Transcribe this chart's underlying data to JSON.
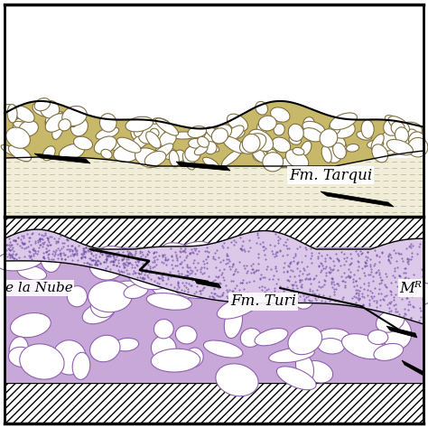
{
  "fig_width": 4.74,
  "fig_height": 4.74,
  "dpi": 100,
  "tarqui_color": "#c8b96a",
  "tarqui_ash_color": "#f0edd8",
  "turi_conglomerate_color": "#c8a8d8",
  "turi_dotted_color": "#dcc8e8",
  "basement_color": "#ffffff",
  "label_tarqui": "Fm. Tarqui",
  "label_turi": "Fm. Turi",
  "label_nube": "e la Nube",
  "label_m": "Mᴿ",
  "label_fontsize": 12
}
